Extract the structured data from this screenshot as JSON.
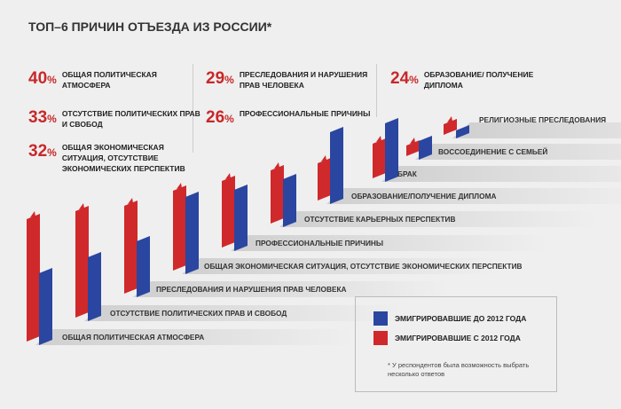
{
  "title": "ТОП–6 ПРИЧИН ОТЪЕЗДА ИЗ РОССИИ*",
  "top_reasons": [
    {
      "pct": "40",
      "text": "Общая политическая атмосфера"
    },
    {
      "pct": "33",
      "text": "Отсутствие политических прав и свобод"
    },
    {
      "pct": "32",
      "text": "Общая экономическая ситуация, отсутствие экономических перспектив"
    },
    {
      "pct": "29",
      "text": "Преследования и нарушения прав человека"
    },
    {
      "pct": "26",
      "text": "Профессиональные причины"
    },
    {
      "pct": "24",
      "text": "Образование/ получение диплома"
    }
  ],
  "pct_sign": "%",
  "legend": {
    "before": "ЭМИГРИРОВАВШИЕ ДО 2012 ГОДА",
    "after": "ЭМИГРИРОВАВШИЕ С 2012 ГОДА",
    "note": "* У респондентов была возможность выбрать несколько ответов"
  },
  "colors": {
    "before": "#2a46a0",
    "after": "#d0292b"
  },
  "chart_data": {
    "type": "bar",
    "categories": [
      "ОБЩАЯ ПОЛИТИЧЕСКАЯ АТМОСФЕРА",
      "ОТСУТСТВИЕ ПОЛИТИЧЕСКИХ ПРАВ И СВОБОД",
      "ПРЕСЛЕДОВАНИЯ И НАРУШЕНИЯ ПРАВ ЧЕЛОВЕКА",
      "ОБЩАЯ ЭКОНОМИЧЕСКАЯ СИТУАЦИЯ, ОТСУТСТВИЕ ЭКОНОМИЧЕСКИХ ПЕРСПЕКТИВ",
      "ПРОФЕССИОНАЛЬНЫЕ ПРИЧИНЫ",
      "ОТСУТСТВИЕ КАРЬЕРНЫХ ПЕРСПЕКТИВ",
      "ОБРАЗОВАНИЕ/ПОЛУЧЕНИЕ ДИПЛОМА",
      "БРАК",
      "ВОССОЕДИНЕНИЕ С СЕМЬЕЙ",
      "РЕЛИГИОЗНЫЕ ПРЕСЛЕДОВАНИЯ"
    ],
    "series": [
      {
        "name": "ЭМИГРИРОВАВШИЕ С 2012 ГОДА",
        "values": [
          46,
          40,
          33,
          30,
          25,
          20,
          14,
          13,
          4,
          4
        ]
      },
      {
        "name": "ЭМИГРИРОВАВШИЕ ДО 2012 ГОДА",
        "values": [
          27,
          24,
          21,
          29,
          23,
          18,
          27,
          22,
          7,
          3
        ]
      }
    ],
    "grid": false,
    "legend": "bottom-right"
  }
}
